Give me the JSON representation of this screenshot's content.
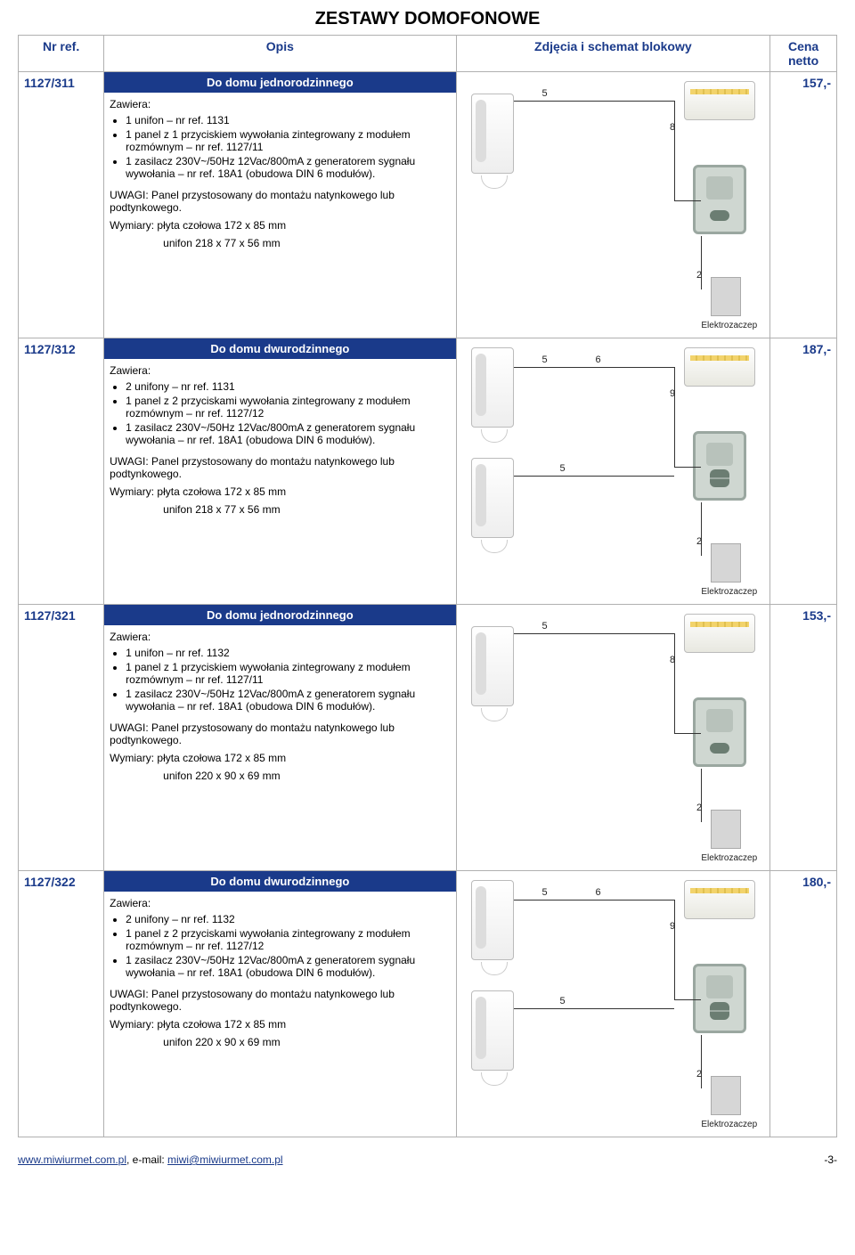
{
  "page_title": "ZESTAWY DOMOFONOWE",
  "columns": {
    "ref": "Nr ref.",
    "desc": "Opis",
    "img": "Zdjęcia i schemat blokowy",
    "price": "Cena netto"
  },
  "zawiera_label": "Zawiera:",
  "uwagi_text": "UWAGI: Panel przystosowany do montażu natynkowego lub podtynkowego.",
  "elektrozaczep_label": "Elektrozaczep",
  "rows": [
    {
      "ref": "1127/311",
      "subheader": "Do domu jednorodzinnego",
      "items": [
        "1 unifon – nr ref. 1131",
        "1 panel z 1 przyciskiem wywołania zintegrowany z modułem rozmównym – nr ref. 1127/11",
        "1 zasilacz 230V~/50Hz 12Vac/800mA z generatorem sygnału wywołania – nr ref. 18A1 (obudowa DIN 6 modułów)."
      ],
      "dims": [
        "Wymiary: płyta czołowa 172 x 85 mm",
        "unifon 218 x 77 x 56 mm"
      ],
      "price": "157,-",
      "diagram": {
        "phones": 1,
        "panel_btns": 1,
        "labels_top": [
          "5"
        ],
        "label_psu": "8",
        "label_bottom": "2"
      }
    },
    {
      "ref": "1127/312",
      "subheader": "Do domu dwurodzinnego",
      "items": [
        "2 unifony – nr ref. 1131",
        "1 panel z 2 przyciskami wywołania zintegrowany z modułem rozmównym – nr ref. 1127/12",
        "1 zasilacz 230V~/50Hz 12Vac/800mA z generatorem sygnału wywołania – nr ref. 18A1 (obudowa DIN 6 modułów)."
      ],
      "dims": [
        "Wymiary: płyta czołowa 172 x 85 mm",
        "unifon 218 x 77 x 56 mm"
      ],
      "price": "187,-",
      "diagram": {
        "phones": 2,
        "panel_btns": 2,
        "labels_top": [
          "5",
          "6"
        ],
        "label_psu": "9",
        "label_second": "5",
        "label_bottom": "2"
      }
    },
    {
      "ref": "1127/321",
      "subheader": "Do domu jednorodzinnego",
      "items": [
        "1 unifon – nr ref. 1132",
        "1 panel z 1 przyciskiem wywołania zintegrowany z modułem rozmównym – nr ref. 1127/11",
        "1 zasilacz 230V~/50Hz 12Vac/800mA z generatorem sygnału wywołania – nr ref. 18A1 (obudowa DIN 6 modułów)."
      ],
      "dims": [
        "Wymiary: płyta czołowa 172 x 85 mm",
        "unifon 220 x 90 x 69 mm"
      ],
      "price": "153,-",
      "diagram": {
        "phones": 1,
        "panel_btns": 1,
        "labels_top": [
          "5"
        ],
        "label_psu": "8",
        "label_bottom": "2"
      }
    },
    {
      "ref": "1127/322",
      "subheader": "Do domu dwurodzinnego",
      "items": [
        "2 unifony – nr ref. 1132",
        "1 panel z 2 przyciskami wywołania zintegrowany z modułem rozmównym – nr ref. 1127/12",
        "1 zasilacz 230V~/50Hz 12Vac/800mA z generatorem sygnału wywołania – nr ref. 18A1 (obudowa DIN 6 modułów)."
      ],
      "dims": [
        "Wymiary: płyta czołowa 172 x 85 mm",
        "unifon 220 x 90 x 69 mm"
      ],
      "price": "180,-",
      "diagram": {
        "phones": 2,
        "panel_btns": 2,
        "labels_top": [
          "5",
          "6"
        ],
        "label_psu": "9",
        "label_second": "5",
        "label_bottom": "2"
      }
    }
  ],
  "footer": {
    "left_url": "www.miwiurmet.com.pl",
    "mid_prefix": ",  e-mail: ",
    "email": "miwi@miwiurmet.com.pl",
    "page_num": "-3-"
  },
  "colors": {
    "header_blue": "#1a3a8a",
    "border_gray": "#b0b0b0",
    "bg": "#ffffff"
  }
}
